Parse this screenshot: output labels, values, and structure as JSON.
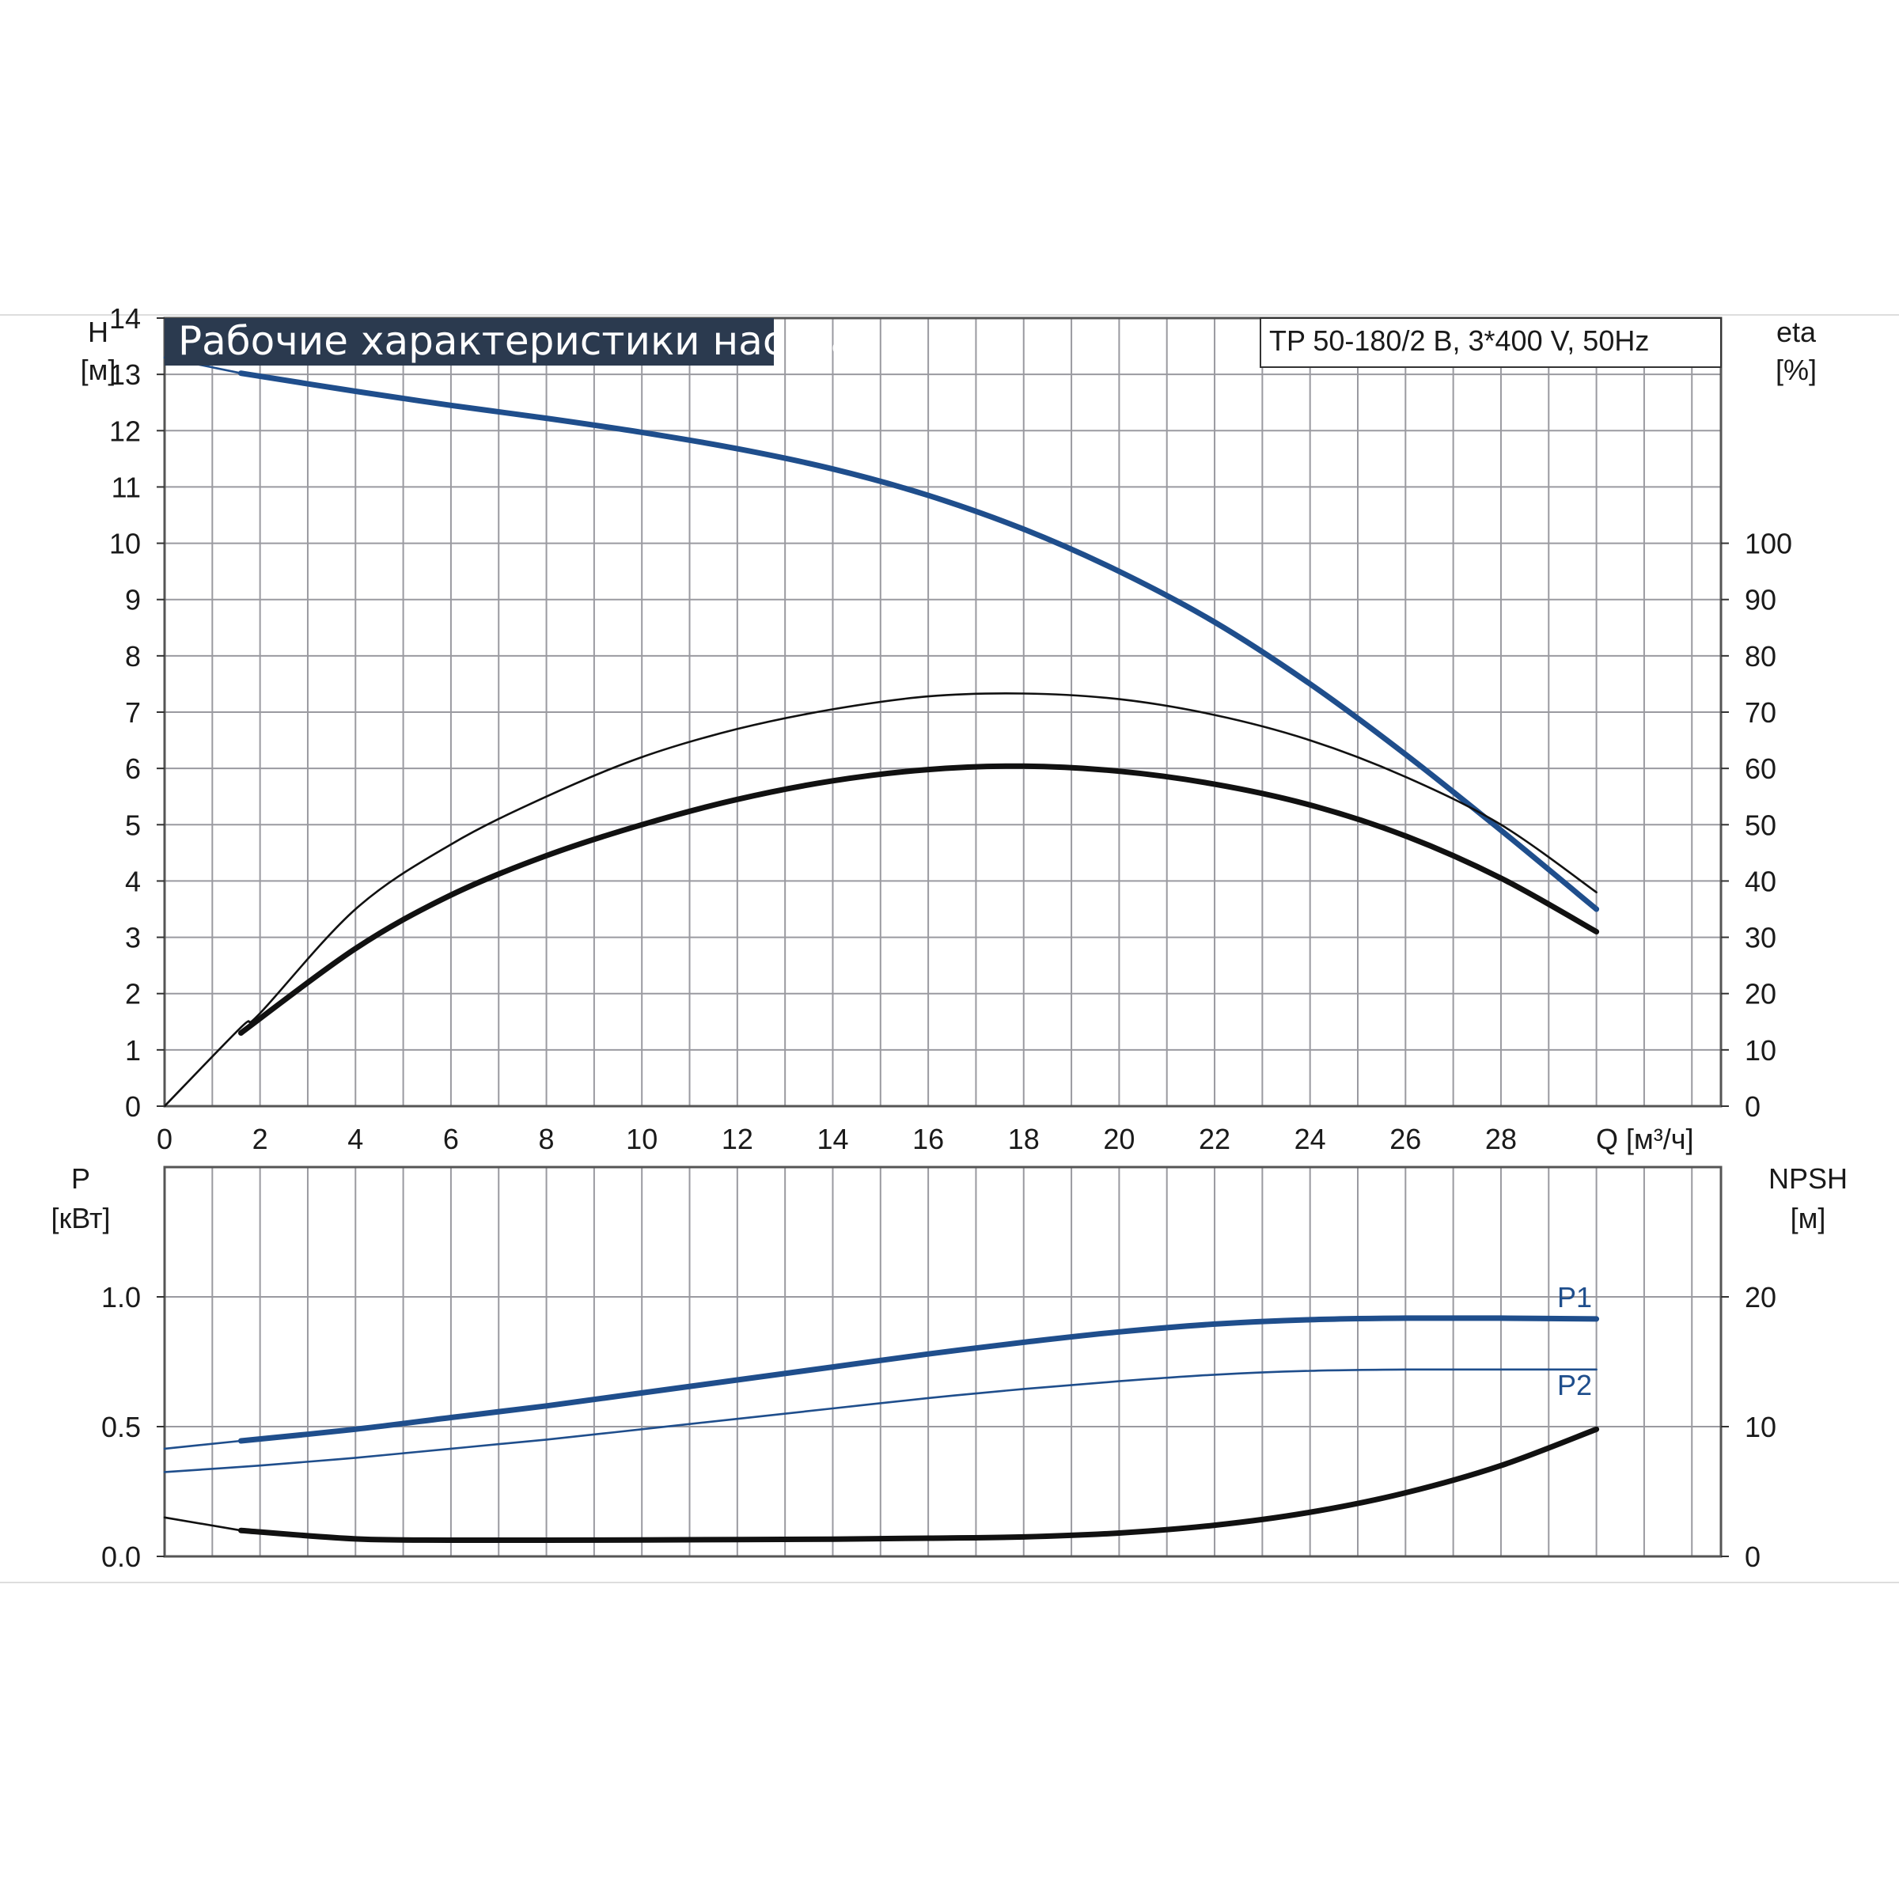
{
  "header": {
    "title": "Рабочие характеристики насоса",
    "model": "TP 50-180/2 B, 3*400 V, 50Hz"
  },
  "colors": {
    "blue": "#1f4e8c",
    "black": "#111111",
    "title_bg": "#2b3a4f",
    "grid": "#9a9aa0",
    "frame": "#555555"
  },
  "chart_data": [
    {
      "type": "line",
      "name_panel": "upper",
      "left_axis": {
        "label": "H",
        "unit": "[м]",
        "ylim": [
          0,
          14
        ],
        "ticks": [
          "0",
          "1",
          "2",
          "3",
          "4",
          "5",
          "6",
          "7",
          "8",
          "9",
          "10",
          "11",
          "12",
          "13",
          "14"
        ]
      },
      "right_axis": {
        "label": "eta",
        "unit": "[%]",
        "ylim": [
          0,
          140
        ],
        "ticks": [
          "0",
          "10",
          "20",
          "30",
          "40",
          "50",
          "60",
          "70",
          "80",
          "90",
          "100"
        ]
      },
      "x_axis": {
        "label": "Q [м³/ч]",
        "xlim": [
          0,
          33
        ],
        "ticks": [
          "0",
          "2",
          "4",
          "6",
          "8",
          "10",
          "12",
          "14",
          "16",
          "18",
          "20",
          "22",
          "24",
          "26",
          "28"
        ]
      },
      "grid": true,
      "series": [
        {
          "color": "blue",
          "axis": "left",
          "style": "thick",
          "x": [
            1.6,
            4,
            6,
            8,
            10,
            12,
            14,
            16,
            18,
            20,
            22,
            24,
            26,
            28,
            30
          ],
          "y": [
            13.02,
            12.7,
            12.45,
            12.22,
            11.97,
            11.68,
            11.32,
            10.85,
            10.25,
            9.5,
            8.6,
            7.5,
            6.25,
            4.9,
            3.5
          ]
        },
        {
          "color": "blue",
          "axis": "left",
          "style": "thin",
          "x": [
            0,
            1.6
          ],
          "y": [
            13.3,
            13.02
          ]
        },
        {
          "color": "black",
          "axis": "right",
          "style": "thin",
          "x": [
            0,
            1.6,
            2,
            4,
            6,
            8,
            10,
            12,
            14,
            16,
            18,
            20,
            22,
            24,
            26,
            28,
            30
          ],
          "y": [
            0,
            14,
            16.5,
            35,
            46.5,
            55,
            62,
            67,
            70.5,
            72.8,
            73.3,
            72.3,
            69.5,
            65,
            58.5,
            50,
            38
          ]
        },
        {
          "color": "black",
          "axis": "right",
          "style": "thick",
          "x": [
            1.6,
            4,
            6,
            8,
            10,
            12,
            14,
            16,
            18,
            20,
            22,
            24,
            26,
            28,
            30
          ],
          "y": [
            13,
            28,
            37.5,
            44.5,
            50,
            54.5,
            57.8,
            59.8,
            60.4,
            59.5,
            57.2,
            53.5,
            48,
            40.5,
            31
          ]
        }
      ]
    },
    {
      "type": "line",
      "name_panel": "lower",
      "left_axis": {
        "label": "P",
        "unit": "[кВт]",
        "ylim": [
          0,
          1.5
        ],
        "ticks": [
          "0.0",
          "0.5",
          "1.0"
        ]
      },
      "right_axis": {
        "label": "NPSH",
        "unit": "[м]",
        "ylim": [
          0,
          30
        ],
        "ticks": [
          "0",
          "10",
          "20"
        ]
      },
      "x_axis": {
        "xlim": [
          0,
          33
        ]
      },
      "grid": true,
      "series": [
        {
          "name": "P1",
          "color": "blue",
          "axis": "left",
          "style": "thick",
          "x": [
            1.6,
            4,
            6,
            8,
            10,
            12,
            14,
            16,
            18,
            20,
            22,
            24,
            26,
            28,
            30
          ],
          "y": [
            0.445,
            0.49,
            0.535,
            0.58,
            0.63,
            0.68,
            0.73,
            0.78,
            0.825,
            0.865,
            0.895,
            0.912,
            0.918,
            0.918,
            0.915
          ]
        },
        {
          "color": "blue",
          "axis": "left",
          "style": "thin",
          "x": [
            0,
            1.6
          ],
          "y": [
            0.415,
            0.445
          ]
        },
        {
          "name": "P2",
          "color": "blue",
          "axis": "left",
          "style": "thin",
          "x": [
            0,
            2,
            4,
            6,
            8,
            10,
            12,
            14,
            16,
            18,
            20,
            22,
            24,
            26,
            28,
            30
          ],
          "y": [
            0.325,
            0.35,
            0.38,
            0.415,
            0.45,
            0.49,
            0.53,
            0.57,
            0.61,
            0.645,
            0.675,
            0.7,
            0.715,
            0.72,
            0.72,
            0.72
          ]
        },
        {
          "color": "black",
          "axis": "right",
          "style": "thick",
          "x": [
            1.6,
            4,
            6,
            8,
            10,
            12,
            14,
            16,
            18,
            20,
            22,
            24,
            26,
            28,
            30
          ],
          "y": [
            2.0,
            1.35,
            1.25,
            1.25,
            1.27,
            1.3,
            1.33,
            1.4,
            1.5,
            1.8,
            2.4,
            3.4,
            4.9,
            7.0,
            9.8
          ]
        },
        {
          "color": "black",
          "axis": "right",
          "style": "thin",
          "x": [
            0,
            1.6
          ],
          "y": [
            3.0,
            2.0
          ]
        }
      ]
    }
  ]
}
